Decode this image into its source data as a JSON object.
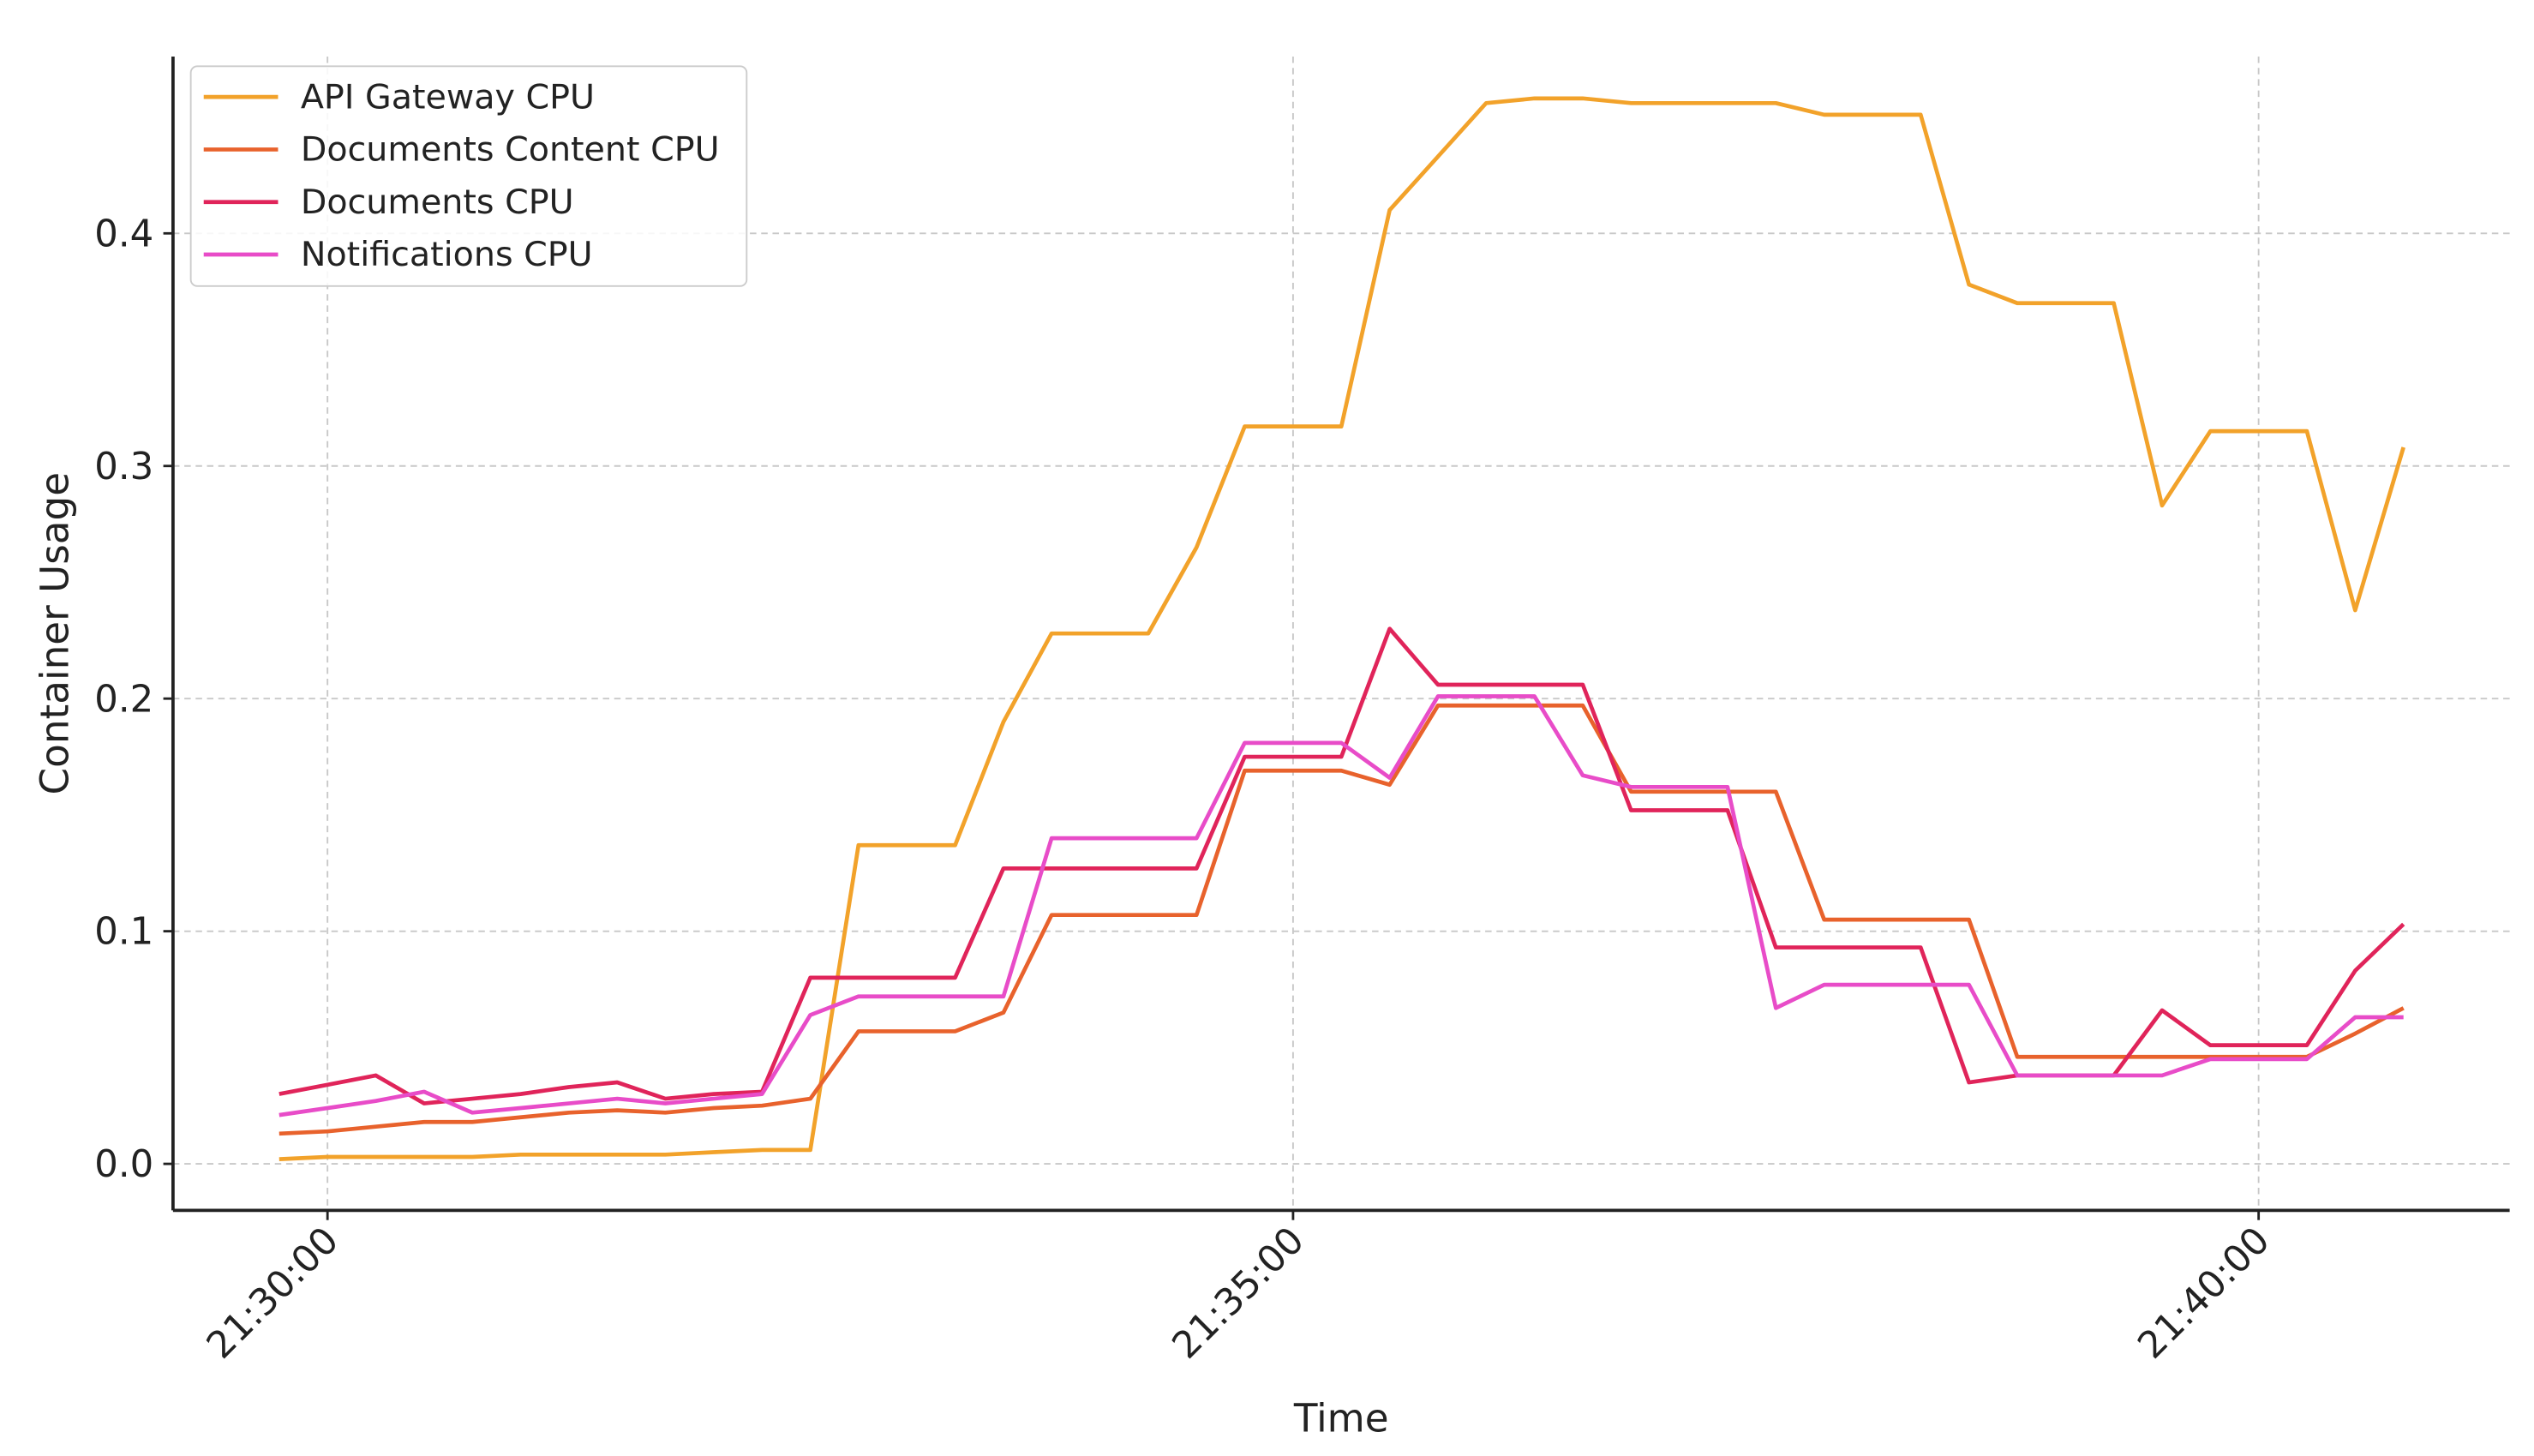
{
  "chart_data": {
    "type": "line",
    "x_label": "Time",
    "y_label": "Container Usage",
    "x": [
      "21:29:45",
      "21:30:00",
      "21:30:15",
      "21:30:30",
      "21:30:45",
      "21:31:00",
      "21:31:15",
      "21:31:30",
      "21:31:45",
      "21:32:00",
      "21:32:15",
      "21:32:30",
      "21:32:45",
      "21:33:00",
      "21:33:15",
      "21:33:30",
      "21:33:45",
      "21:34:00",
      "21:34:15",
      "21:34:30",
      "21:34:45",
      "21:35:00",
      "21:35:15",
      "21:35:30",
      "21:35:45",
      "21:36:00",
      "21:36:15",
      "21:36:30",
      "21:36:45",
      "21:37:00",
      "21:37:15",
      "21:37:30",
      "21:37:45",
      "21:38:00",
      "21:38:15",
      "21:38:30",
      "21:38:45",
      "21:39:00",
      "21:39:15",
      "21:39:30",
      "21:39:45",
      "21:40:00",
      "21:40:15",
      "21:40:30",
      "21:40:45"
    ],
    "series": [
      {
        "name": "API Gateway CPU",
        "color": "#f2a22a",
        "values": [
          0.002,
          0.003,
          0.003,
          0.003,
          0.003,
          0.004,
          0.004,
          0.004,
          0.004,
          0.005,
          0.006,
          0.006,
          0.137,
          0.137,
          0.137,
          0.19,
          0.228,
          0.228,
          0.228,
          0.265,
          0.317,
          0.317,
          0.317,
          0.41,
          0.433,
          0.456,
          0.458,
          0.458,
          0.456,
          0.456,
          0.456,
          0.456,
          0.451,
          0.451,
          0.451,
          0.378,
          0.37,
          0.37,
          0.37,
          0.283,
          0.315,
          0.315,
          0.315,
          0.238,
          0.308
        ]
      },
      {
        "name": "Documents Content CPU",
        "color": "#e8622c",
        "values": [
          0.013,
          0.014,
          0.016,
          0.018,
          0.018,
          0.02,
          0.022,
          0.023,
          0.022,
          0.024,
          0.025,
          0.028,
          0.057,
          0.057,
          0.057,
          0.065,
          0.107,
          0.107,
          0.107,
          0.107,
          0.169,
          0.169,
          0.169,
          0.163,
          0.197,
          0.197,
          0.197,
          0.197,
          0.16,
          0.16,
          0.16,
          0.16,
          0.105,
          0.105,
          0.105,
          0.105,
          0.046,
          0.046,
          0.046,
          0.046,
          0.046,
          0.046,
          0.046,
          0.056,
          0.067
        ]
      },
      {
        "name": "Documents CPU",
        "color": "#e0245a",
        "values": [
          0.03,
          0.034,
          0.038,
          0.026,
          0.028,
          0.03,
          0.033,
          0.035,
          0.028,
          0.03,
          0.031,
          0.08,
          0.08,
          0.08,
          0.08,
          0.127,
          0.127,
          0.127,
          0.127,
          0.127,
          0.175,
          0.175,
          0.175,
          0.23,
          0.206,
          0.206,
          0.206,
          0.206,
          0.152,
          0.152,
          0.152,
          0.093,
          0.093,
          0.093,
          0.093,
          0.035,
          0.038,
          0.038,
          0.038,
          0.066,
          0.051,
          0.051,
          0.051,
          0.083,
          0.103
        ]
      },
      {
        "name": "Notifications CPU",
        "color": "#e84cc8",
        "values": [
          0.021,
          0.024,
          0.027,
          0.031,
          0.022,
          0.024,
          0.026,
          0.028,
          0.026,
          0.028,
          0.03,
          0.064,
          0.072,
          0.072,
          0.072,
          0.072,
          0.14,
          0.14,
          0.14,
          0.14,
          0.181,
          0.181,
          0.181,
          0.166,
          0.201,
          0.201,
          0.201,
          0.167,
          0.162,
          0.162,
          0.162,
          0.067,
          0.077,
          0.077,
          0.077,
          0.077,
          0.038,
          0.038,
          0.038,
          0.038,
          0.045,
          0.045,
          0.045,
          0.063,
          0.063
        ]
      }
    ],
    "xlim": [
      "21:29:12",
      "21:41:18"
    ],
    "xticks": [
      "21:30:00",
      "21:35:00",
      "21:40:00"
    ],
    "ylim": [
      -0.02,
      0.476
    ],
    "yticks": [
      {
        "value": 0,
        "label": "0.0"
      },
      0.1,
      0.2,
      0.3,
      0.4
    ],
    "grid": true,
    "legend": "upper left"
  }
}
